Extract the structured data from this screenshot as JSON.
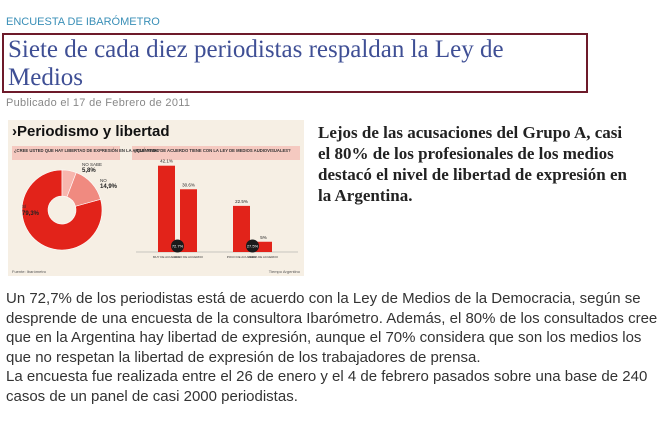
{
  "header": {
    "section": "ENCUESTA DE IBARÓMETRO",
    "title": "Siete de cada diez periodistas respaldan la Ley de Medios",
    "date": "Publicado el 17 de Febrero de 2011"
  },
  "infographic": {
    "title": "›Periodismo y libertad",
    "source": "Fuente: Ibarómetro",
    "credit": "Tiempo Argentino"
  },
  "chart_data": [
    {
      "type": "pie",
      "title": "¿CREE USTED QUE HAY LIBERTAD DE EXPRESIÓN EN LA ARGENTINA?",
      "categories": [
        "SÍ",
        "NO SABE",
        "NO"
      ],
      "values": [
        79.3,
        5.8,
        14.9
      ],
      "value_labels": [
        "79,3%",
        "5,8%",
        "14,9%"
      ],
      "colors": [
        "#e2231a",
        "#f7b6ae",
        "#f08a80"
      ]
    },
    {
      "type": "bar",
      "title": "¿QUÉ NIVEL DE ACUERDO TIENE CON LA LEY DE MEDIOS AUDIOVISUALES?",
      "categories": [
        "MUY DE ACUERDO",
        "ALGO DE ACUERDO",
        "POCO DE ACUERDO",
        "NADA DE ACUERDO"
      ],
      "values": [
        42.1,
        30.6,
        22.5,
        5
      ],
      "value_labels": [
        "42.1%",
        "30.6%",
        "22.5%",
        "5%"
      ],
      "color": "#e2231a",
      "group_totals": {
        "values": [
          72.7,
          27.5
        ],
        "value_labels": [
          "72.7%",
          "27.5%"
        ]
      }
    }
  ],
  "article": {
    "lead": "Lejos de las acusaciones del Grupo A, casi el 80% de los profesionales de los medios destacó el nivel de libertad de expresión en la Argentina.",
    "paragraphs": [
      "Un 72,7% de los periodistas está de acuerdo con la Ley de Medios de la Democracia, según se desprende de una encuesta de la consultora Ibarómetro. Además, el 80% de los consultados cree que en la Argentina hay libertad de expresión, aunque el 70% considera que son los medios los que no respetan la libertad de expresión de los trabajadores de prensa.",
      "La encuesta fue realizada entre el 26 de enero y el 4 de febrero pasados sobre una base de 240 casos de un panel de casi 2000 periodistas."
    ]
  }
}
